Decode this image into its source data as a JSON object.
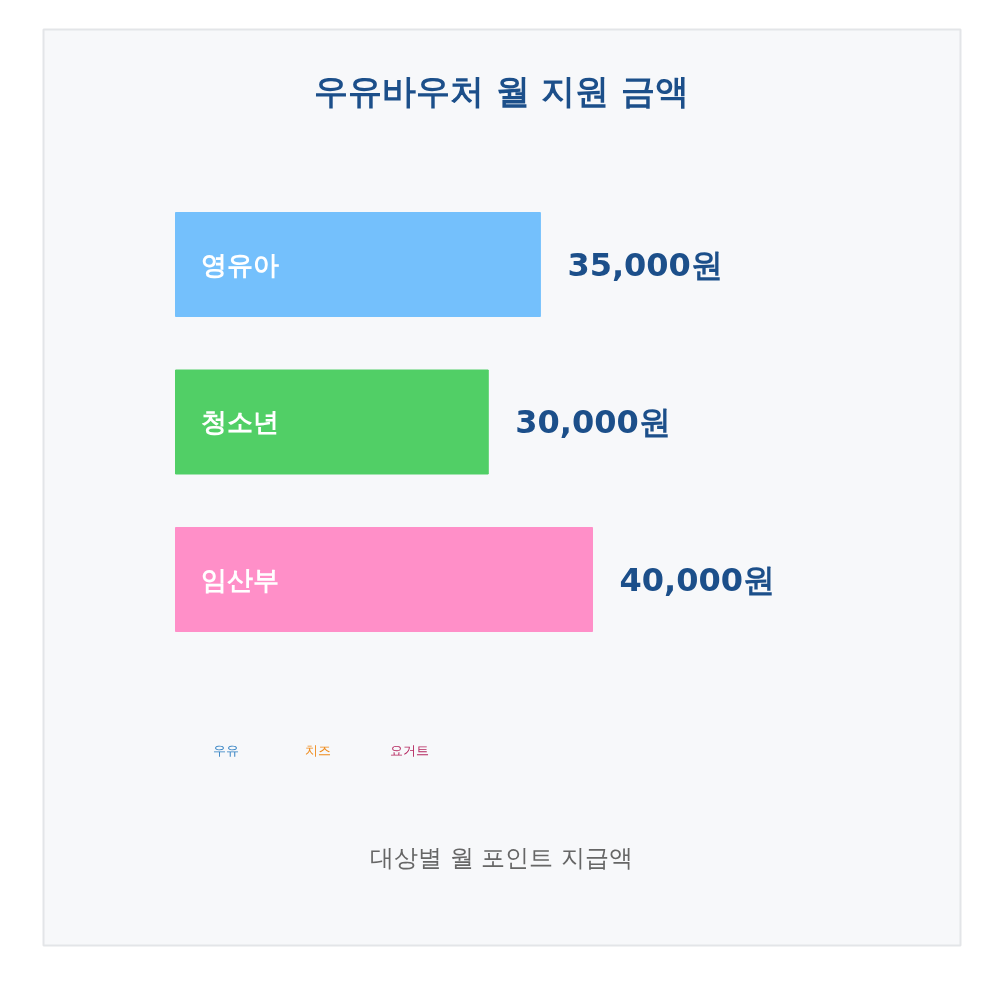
{
  "chart_data": {
    "type": "bar",
    "orientation": "horizontal",
    "title": "우유바우처 월 지원 금액",
    "categories": [
      "영유아",
      "청소년",
      "임산부"
    ],
    "values": [
      35000,
      30000,
      40000
    ],
    "colors": [
      "#74c0fc",
      "#51cf66",
      "#ff8fc8"
    ],
    "value_labels": [
      "35,000원",
      "30,000원",
      "40,000원"
    ],
    "annotations": [
      "우유",
      "치즈",
      "요거트",
      "대상별 월 포인트 지급액"
    ]
  }
}
